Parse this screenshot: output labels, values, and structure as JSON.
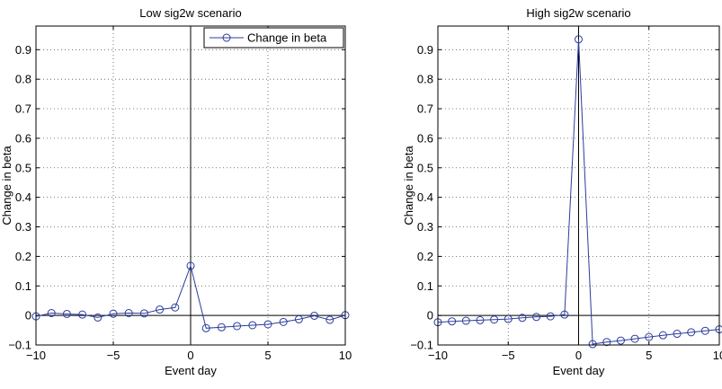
{
  "chart_data": [
    {
      "type": "line",
      "title": "Low sig2w scenario",
      "xlabel": "Event day",
      "ylabel": "Change in beta",
      "xlim": [
        -10,
        10
      ],
      "ylim": [
        -0.1,
        0.98
      ],
      "xticks": [
        -10,
        -5,
        0,
        5,
        10
      ],
      "xtick_labels": [
        "−10",
        "−5",
        "0",
        "5",
        "10"
      ],
      "yticks": [
        -0.1,
        0,
        0.1,
        0.2,
        0.3,
        0.4,
        0.5,
        0.6,
        0.7,
        0.8,
        0.9
      ],
      "ytick_labels": [
        "−0.1",
        "0",
        "0.1",
        "0.2",
        "0.3",
        "0.4",
        "0.5",
        "0.6",
        "0.7",
        "0.8",
        "0.9"
      ],
      "grid": true,
      "legend": "top-right",
      "series": [
        {
          "name": "Change in beta",
          "color": "#2b3c9c",
          "marker": "circle",
          "x": [
            -10,
            -9,
            -8,
            -7,
            -6,
            -5,
            -4,
            -3,
            -2,
            -1,
            0,
            1,
            2,
            3,
            4,
            5,
            6,
            7,
            8,
            9,
            10
          ],
          "y": [
            -0.003,
            0.008,
            0.005,
            0.003,
            -0.007,
            0.006,
            0.008,
            0.007,
            0.02,
            0.027,
            0.168,
            -0.043,
            -0.04,
            -0.036,
            -0.033,
            -0.03,
            -0.022,
            -0.013,
            -0.001,
            -0.015,
            0.001
          ]
        }
      ]
    },
    {
      "type": "line",
      "title": "High sig2w scenario",
      "xlabel": "Event day",
      "ylabel": "Change in beta",
      "xlim": [
        -10,
        10
      ],
      "ylim": [
        -0.1,
        0.98
      ],
      "xticks": [
        -10,
        -5,
        0,
        5,
        10
      ],
      "xtick_labels": [
        "−10",
        "−5",
        "0",
        "5",
        "10"
      ],
      "yticks": [
        -0.1,
        0,
        0.1,
        0.2,
        0.3,
        0.4,
        0.5,
        0.6,
        0.7,
        0.8,
        0.9
      ],
      "ytick_labels": [
        "−0.1",
        "0",
        "0.1",
        "0.2",
        "0.3",
        "0.4",
        "0.5",
        "0.6",
        "0.7",
        "0.8",
        "0.9"
      ],
      "grid": true,
      "series": [
        {
          "color": "#2b3c9c",
          "marker": "circle",
          "x": [
            -10,
            -9,
            -8,
            -7,
            -6,
            -5,
            -4,
            -3,
            -2,
            -1,
            0,
            1,
            2,
            3,
            4,
            5,
            6,
            7,
            8,
            9,
            10
          ],
          "y": [
            -0.023,
            -0.02,
            -0.018,
            -0.016,
            -0.014,
            -0.012,
            -0.008,
            -0.005,
            -0.003,
            0.003,
            0.935,
            -0.097,
            -0.09,
            -0.085,
            -0.079,
            -0.073,
            -0.067,
            -0.062,
            -0.057,
            -0.052,
            -0.047
          ]
        }
      ]
    }
  ]
}
